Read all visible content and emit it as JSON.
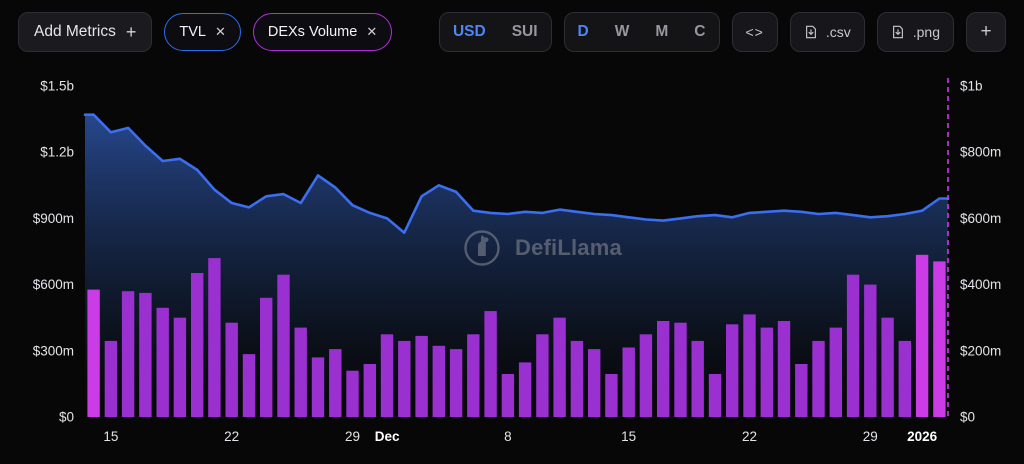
{
  "header": {
    "add_metrics": {
      "label": "Add Metrics",
      "icon": "+"
    },
    "metric_pills": [
      {
        "label": "TVL",
        "close": "✕",
        "color": "#2b6df0"
      },
      {
        "label": "DEXs Volume",
        "close": "✕",
        "color": "#b12fd8"
      }
    ],
    "currency_toggle": {
      "options": [
        "USD",
        "SUI"
      ],
      "selected": "USD"
    },
    "interval_toggle": {
      "options": [
        "D",
        "W",
        "M",
        "C"
      ],
      "selected": "D"
    },
    "embed_button": "<>",
    "csv_button": ".csv",
    "png_button": ".png",
    "add_chart_button": "+"
  },
  "watermark": {
    "label": "DefiLlama"
  },
  "chart_data": {
    "type": "combo",
    "unit": "$m",
    "grid": false,
    "legend_position": "none",
    "series": [
      {
        "name": "TVL",
        "type": "line",
        "axis": "left",
        "color": "#3b6ef0",
        "area_gradient_top": "#2a4f9c",
        "values": [
          1370,
          1290,
          1310,
          1230,
          1160,
          1170,
          1120,
          1030,
          970,
          950,
          1000,
          1010,
          970,
          1095,
          1040,
          960,
          925,
          900,
          835,
          1000,
          1050,
          1020,
          935,
          925,
          920,
          930,
          925,
          940,
          930,
          920,
          915,
          905,
          895,
          890,
          900,
          910,
          915,
          905,
          925,
          930,
          935,
          930,
          920,
          925,
          915,
          905,
          910,
          920,
          935,
          990
        ]
      },
      {
        "name": "DEXs Volume",
        "type": "bar",
        "axis": "right",
        "color": "#9a30cf",
        "highlight_color": "#cb3be6",
        "highlight_indices": [
          0,
          48,
          49
        ],
        "values": [
          385,
          230,
          380,
          375,
          330,
          300,
          435,
          480,
          285,
          190,
          360,
          430,
          270,
          180,
          205,
          140,
          160,
          250,
          230,
          245,
          215,
          205,
          250,
          320,
          130,
          165,
          250,
          300,
          230,
          205,
          130,
          210,
          250,
          290,
          285,
          230,
          130,
          280,
          310,
          270,
          290,
          160,
          230,
          270,
          430,
          400,
          300,
          230,
          490,
          470
        ]
      }
    ],
    "left_axis": {
      "max": 1500,
      "values": [
        0,
        300,
        600,
        900,
        1200,
        1500
      ],
      "labels": [
        "$0",
        "$300m",
        "$600m",
        "$900m",
        "$1.2b",
        "$1.5b"
      ]
    },
    "right_axis": {
      "max": 1000,
      "values": [
        0,
        200,
        400,
        600,
        800,
        1000
      ],
      "labels": [
        "$0",
        "$200m",
        "$400m",
        "$600m",
        "$800m",
        "$1b"
      ]
    },
    "x_ticks": [
      {
        "index": 1,
        "label": "15"
      },
      {
        "index": 8,
        "label": "22"
      },
      {
        "index": 15,
        "label": "29"
      },
      {
        "index": 17,
        "label": "Dec",
        "bold": true
      },
      {
        "index": 24,
        "label": "8"
      },
      {
        "index": 31,
        "label": "15"
      },
      {
        "index": 38,
        "label": "22"
      },
      {
        "index": 45,
        "label": "29"
      },
      {
        "index": 48,
        "label": "2026",
        "bold": true
      }
    ],
    "current_marker_color": "#cb3be6"
  }
}
